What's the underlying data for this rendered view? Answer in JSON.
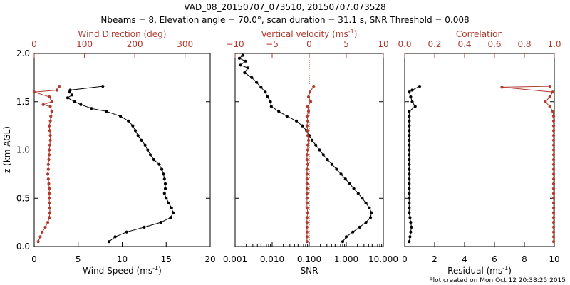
{
  "figure": {
    "title_line1": "VAD_08_20150707_073510, 20150707.073528",
    "title_line2": "Nbeams = 8, Elevation angle = 70.0°, scan duration = 31.1 s, SNR Threshold = 0.008",
    "footer": "Plot created on Mon Oct 12 20:38:25 2015",
    "colors": {
      "primary": "#000000",
      "secondary": "#b03a2e"
    }
  },
  "chart_data": [
    {
      "type": "line",
      "panel": "wind",
      "ylabel": "z (km AGL)",
      "ylim": [
        0.0,
        2.0
      ],
      "yticks": [
        "0.0",
        "0.5",
        "1.0",
        "1.5",
        "2.0"
      ],
      "yticks_values": [
        0.0,
        0.5,
        1.0,
        1.5,
        2.0
      ],
      "bottom_axis": {
        "label": "Wind Speed (ms",
        "label_sup": "-1",
        "label_end": ")",
        "range": [
          0,
          20
        ],
        "scale": "linear",
        "ticks": [
          "0",
          "5",
          "10",
          "15",
          "20"
        ],
        "tick_values": [
          0,
          5,
          10,
          15,
          20
        ]
      },
      "top_axis": {
        "label": "Wind Direction (deg)",
        "range": [
          0,
          350
        ],
        "scale": "linear",
        "ticks": [
          "0",
          "100",
          "200",
          "300"
        ],
        "tick_values": [
          0,
          100,
          200,
          300
        ]
      },
      "series": [
        {
          "axis": "bottom",
          "color": "#000000",
          "y": [
            1.66,
            1.62,
            1.6,
            1.57,
            1.54,
            1.5,
            1.47,
            1.43,
            1.4,
            1.35,
            1.3,
            1.25,
            1.2,
            1.15,
            1.1,
            1.05,
            1.0,
            0.95,
            0.9,
            0.85,
            0.8,
            0.75,
            0.7,
            0.65,
            0.6,
            0.55,
            0.5,
            0.45,
            0.4,
            0.35,
            0.3,
            0.25,
            0.2,
            0.15,
            0.1,
            0.05
          ],
          "values": [
            7.8,
            4.1,
            4.0,
            4.3,
            3.8,
            4.6,
            5.3,
            6.5,
            8.2,
            9.8,
            10.7,
            11.2,
            11.5,
            11.8,
            12.2,
            12.6,
            12.9,
            13.2,
            13.6,
            14.2,
            14.5,
            14.7,
            14.8,
            14.9,
            14.9,
            14.8,
            15.0,
            15.3,
            15.6,
            15.8,
            15.5,
            14.4,
            12.5,
            10.5,
            9.2,
            8.5
          ]
        },
        {
          "axis": "top",
          "color": "#b03a2e",
          "y": [
            1.66,
            1.62,
            1.6,
            1.55,
            1.5,
            1.47,
            1.45,
            1.4,
            1.35,
            1.3,
            1.25,
            1.2,
            1.15,
            1.1,
            1.05,
            1.0,
            0.95,
            0.9,
            0.85,
            0.8,
            0.75,
            0.7,
            0.65,
            0.6,
            0.55,
            0.5,
            0.45,
            0.4,
            0.35,
            0.3,
            0.25,
            0.2,
            0.15,
            0.1,
            0.05
          ],
          "values": [
            50,
            45,
            0,
            30,
            35,
            18,
            32,
            35,
            33,
            32,
            30,
            31,
            32,
            32,
            31,
            30,
            30,
            29,
            28,
            28,
            27,
            28,
            29,
            30,
            30,
            30,
            30,
            31,
            31,
            30,
            27,
            22,
            16,
            12,
            8
          ]
        }
      ]
    },
    {
      "type": "line",
      "panel": "snr",
      "ylim": [
        0.0,
        2.0
      ],
      "bottom_axis": {
        "label": "SNR",
        "range": [
          0.001,
          10
        ],
        "scale": "log",
        "ticks": [
          "0.001",
          "0.010",
          "0.100",
          "1.000",
          "10.000"
        ],
        "tick_values": [
          0.001,
          0.01,
          0.1,
          1,
          10
        ]
      },
      "top_axis": {
        "label": "Vertical velocity (ms",
        "label_sup": "-1",
        "label_end": ")",
        "range": [
          -10,
          10
        ],
        "scale": "linear",
        "ticks": [
          "−10",
          "−5",
          "0",
          "5",
          "10"
        ],
        "tick_values": [
          -10,
          -5,
          0,
          5,
          10
        ]
      },
      "series": [
        {
          "axis": "bottom",
          "color": "#000000",
          "y": [
            1.98,
            1.95,
            1.92,
            1.88,
            1.85,
            1.8,
            1.75,
            1.7,
            1.65,
            1.6,
            1.55,
            1.5,
            1.45,
            1.4,
            1.35,
            1.3,
            1.25,
            1.2,
            1.15,
            1.1,
            1.05,
            1.0,
            0.95,
            0.9,
            0.85,
            0.8,
            0.75,
            0.7,
            0.65,
            0.6,
            0.55,
            0.5,
            0.45,
            0.4,
            0.35,
            0.3,
            0.25,
            0.2,
            0.15,
            0.1,
            0.05
          ],
          "values": [
            0.0016,
            0.0013,
            0.0019,
            0.0014,
            0.0022,
            0.0018,
            0.0028,
            0.0038,
            0.005,
            0.0065,
            0.0075,
            0.009,
            0.0095,
            0.015,
            0.025,
            0.045,
            0.065,
            0.085,
            0.1,
            0.12,
            0.15,
            0.19,
            0.24,
            0.31,
            0.41,
            0.55,
            0.72,
            0.95,
            1.25,
            1.6,
            2.1,
            2.7,
            3.4,
            4.2,
            4.8,
            4.5,
            3.4,
            2.3,
            1.5,
            1.0,
            0.8
          ]
        },
        {
          "axis": "top",
          "color": "#b03a2e",
          "y": [
            1.66,
            1.6,
            1.55,
            1.5,
            1.45,
            1.4,
            1.35,
            1.3,
            1.25,
            1.2,
            1.15,
            1.1,
            1.05,
            1.0,
            0.95,
            0.9,
            0.85,
            0.8,
            0.75,
            0.7,
            0.65,
            0.6,
            0.55,
            0.5,
            0.45,
            0.4,
            0.35,
            0.3,
            0.25,
            0.2,
            0.15,
            0.1,
            0.05
          ],
          "values": [
            0.6,
            0.1,
            -0.1,
            0.2,
            -0.2,
            -0.1,
            -0.3,
            -0.2,
            -0.3,
            -0.2,
            -0.2,
            -0.1,
            -0.2,
            -0.2,
            -0.3,
            -0.3,
            -0.2,
            -0.3,
            -0.3,
            -0.3,
            -0.3,
            -0.3,
            -0.3,
            -0.3,
            -0.3,
            -0.3,
            -0.2,
            -0.3,
            -0.3,
            -0.3,
            -0.3,
            -0.3,
            -0.3
          ]
        }
      ],
      "reference_line": {
        "axis": "top",
        "value": 0,
        "style": "dotted",
        "color": "#b03a2e"
      }
    },
    {
      "type": "line",
      "panel": "residual",
      "ylim": [
        0.0,
        2.0
      ],
      "bottom_axis": {
        "label": "Residual (ms",
        "label_sup": "-1",
        "label_end": ")",
        "range": [
          0,
          10
        ],
        "scale": "linear",
        "ticks": [
          "0",
          "2",
          "4",
          "6",
          "8",
          "10"
        ],
        "tick_values": [
          0,
          2,
          4,
          6,
          8,
          10
        ]
      },
      "top_axis": {
        "label": "Correlation",
        "range": [
          0.0,
          1.0
        ],
        "scale": "linear",
        "ticks": [
          "0.0",
          "0.2",
          "0.4",
          "0.6",
          "0.8",
          "1.0"
        ],
        "tick_values": [
          0.0,
          0.2,
          0.4,
          0.6,
          0.8,
          1.0
        ]
      },
      "series": [
        {
          "axis": "bottom",
          "color": "#000000",
          "y": [
            1.66,
            1.62,
            1.6,
            1.55,
            1.5,
            1.45,
            1.4,
            1.35,
            1.3,
            1.25,
            1.2,
            1.15,
            1.1,
            1.05,
            1.0,
            0.95,
            0.9,
            0.85,
            0.8,
            0.75,
            0.7,
            0.65,
            0.6,
            0.55,
            0.5,
            0.45,
            0.4,
            0.35,
            0.3,
            0.25,
            0.2,
            0.15,
            0.1,
            0.05
          ],
          "values": [
            1.0,
            0.5,
            0.3,
            0.4,
            0.5,
            0.7,
            0.3,
            0.3,
            0.3,
            0.3,
            0.3,
            0.3,
            0.3,
            0.3,
            0.3,
            0.3,
            0.3,
            0.3,
            0.3,
            0.3,
            0.3,
            0.3,
            0.3,
            0.3,
            0.3,
            0.3,
            0.3,
            0.3,
            0.35,
            0.4,
            0.45,
            0.4,
            0.35,
            0.3
          ]
        },
        {
          "axis": "top",
          "color": "#b03a2e",
          "y": [
            1.66,
            1.65,
            1.6,
            1.55,
            1.5,
            1.45,
            1.4,
            1.35,
            1.3,
            1.25,
            1.2,
            1.15,
            1.1,
            1.05,
            1.0,
            0.95,
            0.9,
            0.85,
            0.8,
            0.75,
            0.7,
            0.65,
            0.6,
            0.55,
            0.5,
            0.45,
            0.4,
            0.35,
            0.3,
            0.25,
            0.2,
            0.15,
            0.1,
            0.05
          ],
          "values": [
            0.97,
            0.65,
            0.99,
            0.97,
            0.94,
            0.97,
            0.99,
            0.995,
            0.995,
            0.995,
            0.995,
            0.995,
            0.995,
            0.995,
            0.995,
            0.995,
            0.995,
            0.995,
            0.995,
            0.995,
            0.995,
            0.995,
            0.995,
            0.995,
            0.995,
            0.995,
            0.995,
            0.995,
            0.995,
            0.995,
            0.995,
            0.995,
            0.995,
            0.995
          ]
        }
      ]
    }
  ]
}
